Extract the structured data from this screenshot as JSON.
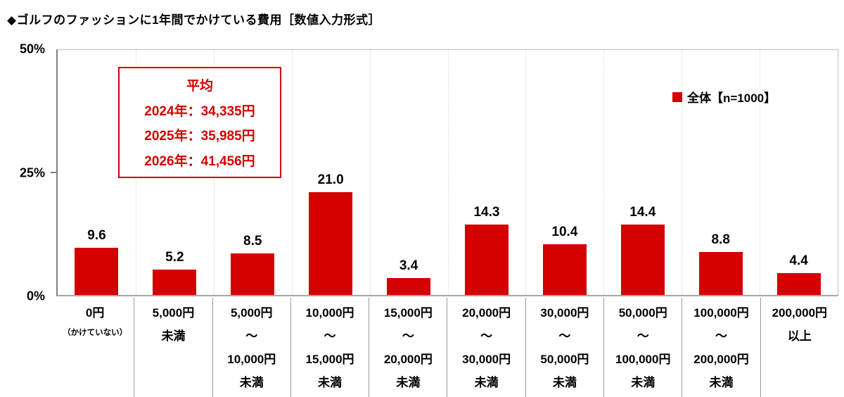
{
  "title": "◆ゴルフのファッションに1年間でかけている費用［数値入力形式］",
  "legend": {
    "label": "全体【n=1000】"
  },
  "annotation_box": {
    "heading": "平均",
    "lines": [
      "2024年：34,335円",
      "2025年：35,985円",
      "2026年：41,456円"
    ]
  },
  "colors": {
    "bar": "#d40000",
    "annotation": "#d40000",
    "grid": "#dadada",
    "axis": "#a6a6a6"
  },
  "chart_data": {
    "type": "bar",
    "title": "◆ゴルフのファッションに1年間でかけている費用［数値入力形式］",
    "series_name": "全体【n=1000】",
    "categories": [
      [
        "0円",
        "（かけていない）"
      ],
      [
        "5,000円",
        "未満"
      ],
      [
        "5,000円",
        "～",
        "10,000円",
        "未満"
      ],
      [
        "10,000円",
        "～",
        "15,000円",
        "未満"
      ],
      [
        "15,000円",
        "～",
        "20,000円",
        "未満"
      ],
      [
        "20,000円",
        "～",
        "30,000円",
        "未満"
      ],
      [
        "30,000円",
        "～",
        "50,000円",
        "未満"
      ],
      [
        "50,000円",
        "～",
        "100,000円",
        "未満"
      ],
      [
        "100,000円",
        "～",
        "200,000円",
        "未満"
      ],
      [
        "200,000円",
        "以上"
      ]
    ],
    "values": [
      9.6,
      5.2,
      8.5,
      21.0,
      3.4,
      14.3,
      10.4,
      14.4,
      8.8,
      4.4
    ],
    "value_labels": [
      "9.6",
      "5.2",
      "8.5",
      "21.0",
      "3.4",
      "14.3",
      "10.4",
      "14.4",
      "8.8",
      "4.4"
    ],
    "ylim": [
      0,
      50
    ],
    "yticks": [
      {
        "label": "50%",
        "value": 50
      },
      {
        "label": "25%",
        "value": 25
      },
      {
        "label": "0%",
        "value": 0
      }
    ],
    "grid": "vertical dotted separators at category boundaries",
    "legend_position": "top-right"
  }
}
